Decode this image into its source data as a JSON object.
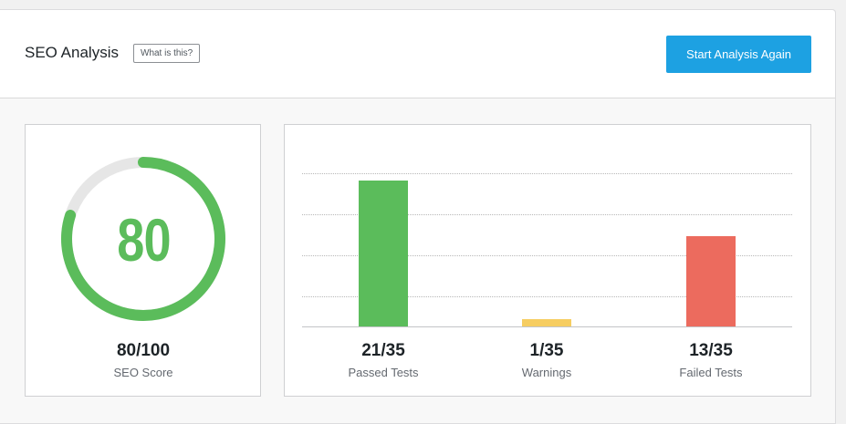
{
  "header": {
    "title": "SEO Analysis",
    "what_label": "What is this?",
    "start_label": "Start Analysis Again"
  },
  "score": {
    "value": "80",
    "out_of": "80/100",
    "label": "SEO Score",
    "percent": 80,
    "color": "#5bbc5b",
    "track_color": "#e6e6e6"
  },
  "chart_data": {
    "type": "bar",
    "categories": [
      "Passed Tests",
      "Warnings",
      "Failed Tests"
    ],
    "values": [
      21,
      1,
      13
    ],
    "totals": [
      "21/35",
      "1/35",
      "13/35"
    ],
    "colors": [
      "#5bbc5b",
      "#f6cd61",
      "#ec6b5e"
    ],
    "ylim": [
      0,
      25
    ],
    "grid": true
  }
}
